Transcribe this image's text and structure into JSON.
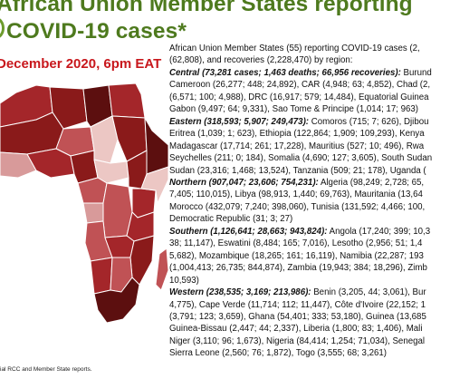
{
  "header": {
    "title_line1": "African Union Member States reporting",
    "title_line2": "COVID-19 cases*",
    "date": "December 2020, 6pm EAT"
  },
  "map": {
    "source": "ial RCC and Member State reports.",
    "colors": {
      "darkest": "#5c0f0f",
      "dark": "#8a1a1a",
      "medium": "#a4262a",
      "mid_light": "#c05255",
      "light": "#d89a9a",
      "lightest": "#ecc7c4",
      "border": "#ffffff"
    }
  },
  "summary": {
    "intro_line1": "African Union Member States (55) reporting COVID-19 cases (2,",
    "intro_line2": "(62,808), and recoveries (2,228,470) by region:"
  },
  "regions": [
    {
      "name": "Central",
      "label": "Central (73,281 cases; 1,463 deaths; 66,956 recoveries):",
      "lines": [
        " Burund",
        "Cameroon (26,277; 448; 24,892), CAR (4,948; 63; 4,852), Chad (2,",
        "(6,571; 100; 4,988), DRC (16,917; 579; 14,484), Equatorial Guinea",
        "Gabon (9,497; 64; 9,331), Sao Tome & Principe (1,014; 17; 963)"
      ]
    },
    {
      "name": "Eastern",
      "label": "Eastern (318,593; 5,907; 249,473):",
      "lines": [
        " Comoros (715; 7; 626), Djibou",
        "Eritrea (1,039; 1; 623), Ethiopia (122,864; 1,909; 109,293), Kenya",
        "Madagascar (17,714; 261; 17,228), Mauritius (527; 10; 496), Rwa",
        "Seychelles (211; 0; 184), Somalia (4,690; 127; 3,605), South Sudan",
        "Sudan (23,316; 1,468; 13,524), Tanzania (509; 21; 178), Uganda ("
      ]
    },
    {
      "name": "Northern",
      "label": "Northern (907,047; 23,606; 754,231):",
      "lines": [
        " Algeria (98,249; 2,728; 65,",
        "7,405; 110,015), Libya (98,913, 1,440; 69,763), Mauritania (13,64",
        "Morocco (432,079; 7,240; 398,060), Tunisia (131,592; 4,466; 100,",
        "Democratic Republic (31; 3; 27)"
      ]
    },
    {
      "name": "Southern",
      "label": "Southern (1,126,641; 28,663; 943,824):",
      "lines": [
        " Angola (17,240; 399; 10,3",
        "38; 11,147), Eswatini (8,484; 165; 7,016), Lesotho (2,956; 51; 1,4",
        "5,682), Mozambique (18,265; 161; 16,119), Namibia (22,287; 193",
        "(1,004,413; 26,735; 844,874), Zambia (19,943; 384; 18,296), Zimb",
        "10,593)"
      ]
    },
    {
      "name": "Western",
      "label": "Western (238,535; 3,169; 213,986):",
      "lines": [
        " Benin (3,205, 44; 3,061), Bur",
        "4,775), Cape Verde (11,714; 112; 11,447), Côte d'Ivoire (22,152; 1",
        "(3,791; 123; 3,659), Ghana (54,401; 333; 53,180), Guinea (13,685",
        "Guinea-Bissau (2,447; 44; 2,337), Liberia (1,800; 83; 1,406), Mali",
        "Niger (3,110; 96; 1,673), Nigeria (84,414; 1,254; 71,034), Senegal",
        "Sierra Leone (2,560; 76; 1,872), Togo (3,555; 68; 3,261)"
      ]
    }
  ]
}
